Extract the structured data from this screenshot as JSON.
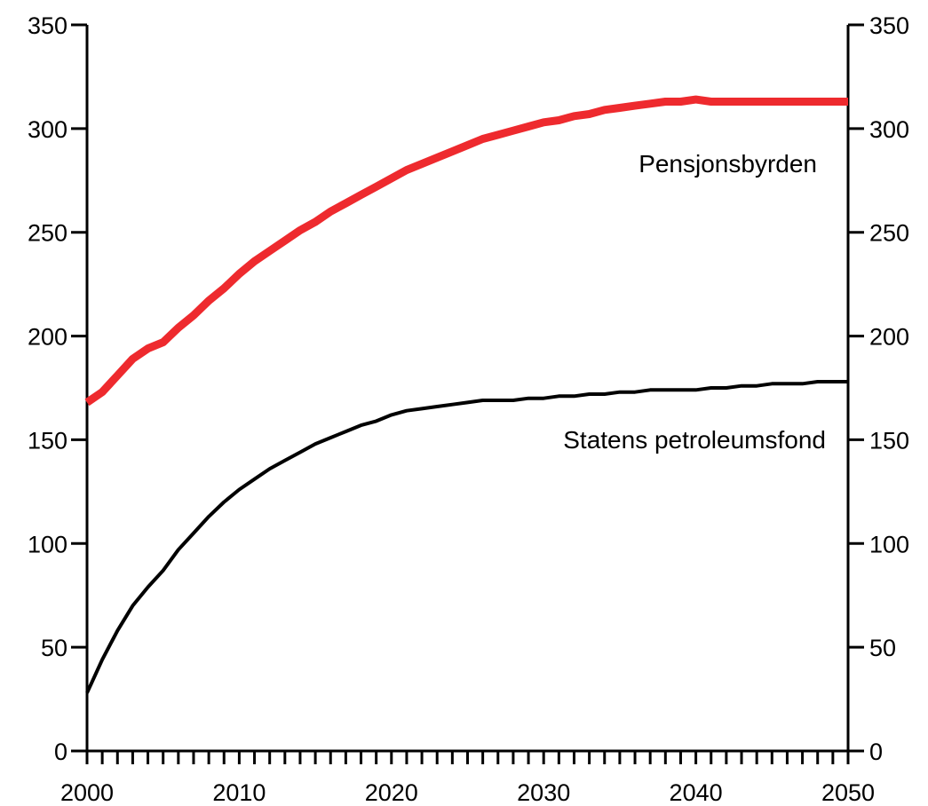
{
  "chart_data": {
    "type": "line",
    "x_ticks": [
      2000,
      2010,
      2020,
      2030,
      2040,
      2050
    ],
    "y_ticks": [
      0,
      50,
      100,
      150,
      200,
      250,
      300,
      350
    ],
    "xlim": [
      2000,
      2050
    ],
    "ylim": [
      0,
      350
    ],
    "grid": false,
    "series": [
      {
        "name": "Pensjonsbyrden",
        "color": "#ee2a2e",
        "x": [
          2000,
          2001,
          2002,
          2003,
          2004,
          2005,
          2006,
          2007,
          2008,
          2009,
          2010,
          2011,
          2012,
          2013,
          2014,
          2015,
          2016,
          2017,
          2018,
          2019,
          2020,
          2021,
          2022,
          2023,
          2024,
          2025,
          2026,
          2027,
          2028,
          2029,
          2030,
          2031,
          2032,
          2033,
          2034,
          2035,
          2036,
          2037,
          2038,
          2039,
          2040,
          2041,
          2042,
          2043,
          2044,
          2045,
          2046,
          2047,
          2048,
          2049,
          2050
        ],
        "values": [
          168,
          173,
          181,
          189,
          194,
          197,
          204,
          210,
          217,
          223,
          230,
          236,
          241,
          246,
          251,
          255,
          260,
          264,
          268,
          272,
          276,
          280,
          283,
          286,
          289,
          292,
          295,
          297,
          299,
          301,
          303,
          304,
          306,
          307,
          309,
          310,
          311,
          312,
          313,
          313,
          314,
          313,
          313,
          313,
          313,
          313,
          313,
          313,
          313,
          313,
          313
        ]
      },
      {
        "name": "Statens petroleumsfond",
        "color": "#000000",
        "x": [
          2000,
          2001,
          2002,
          2003,
          2004,
          2005,
          2006,
          2007,
          2008,
          2009,
          2010,
          2011,
          2012,
          2013,
          2014,
          2015,
          2016,
          2017,
          2018,
          2019,
          2020,
          2021,
          2022,
          2023,
          2024,
          2025,
          2026,
          2027,
          2028,
          2029,
          2030,
          2031,
          2032,
          2033,
          2034,
          2035,
          2036,
          2037,
          2038,
          2039,
          2040,
          2041,
          2042,
          2043,
          2044,
          2045,
          2046,
          2047,
          2048,
          2049,
          2050
        ],
        "values": [
          28,
          44,
          58,
          70,
          79,
          87,
          97,
          105,
          113,
          120,
          126,
          131,
          136,
          140,
          144,
          148,
          151,
          154,
          157,
          159,
          162,
          164,
          165,
          166,
          167,
          168,
          169,
          169,
          169,
          170,
          170,
          171,
          171,
          172,
          172,
          173,
          173,
          174,
          174,
          174,
          174,
          175,
          175,
          176,
          176,
          177,
          177,
          177,
          178,
          178,
          178
        ]
      }
    ]
  }
}
